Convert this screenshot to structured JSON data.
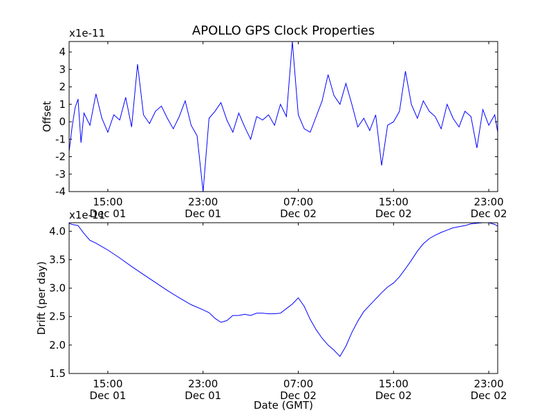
{
  "figure": {
    "title": "APOLLO GPS Clock Properties",
    "xlabel": "Date (GMT)"
  },
  "chart_data": [
    {
      "type": "line",
      "ylabel": "Offset",
      "multiplier_label": "x1e-11",
      "ylim": [
        -4,
        4.6
      ],
      "yticks": [
        {
          "value": -4,
          "label": "-4"
        },
        {
          "value": -3,
          "label": "-3"
        },
        {
          "value": -2,
          "label": "-2"
        },
        {
          "value": -1,
          "label": "-1"
        },
        {
          "value": 0,
          "label": "0"
        },
        {
          "value": 1,
          "label": "1"
        },
        {
          "value": 2,
          "label": "2"
        },
        {
          "value": 3,
          "label": "3"
        },
        {
          "value": 4,
          "label": "4"
        }
      ],
      "xlim": [
        "Dec 01 11:45",
        "Dec 02 23:45"
      ],
      "xticks": [
        {
          "value": "Dec 01 15:00",
          "time": "15:00",
          "date": "Dec 01"
        },
        {
          "value": "Dec 01 23:00",
          "time": "23:00",
          "date": "Dec 01"
        },
        {
          "value": "Dec 02 07:00",
          "time": "07:00",
          "date": "Dec 02"
        },
        {
          "value": "Dec 02 15:00",
          "time": "15:00",
          "date": "Dec 02"
        },
        {
          "value": "Dec 02 23:00",
          "time": "23:00",
          "date": "Dec 02"
        }
      ],
      "color": "#0000ff",
      "series": [
        {
          "x": [
            "Dec 01 11:45",
            "Dec 01 12:00",
            "Dec 01 12:15",
            "Dec 01 12:30",
            "Dec 01 12:45",
            "Dec 01 13:00",
            "Dec 01 13:30",
            "Dec 01 14:00",
            "Dec 01 14:30",
            "Dec 01 15:00",
            "Dec 01 15:30",
            "Dec 01 16:00",
            "Dec 01 16:30",
            "Dec 01 17:00",
            "Dec 01 17:30",
            "Dec 01 18:00",
            "Dec 01 18:30",
            "Dec 01 19:00",
            "Dec 01 19:30",
            "Dec 01 20:00",
            "Dec 01 20:30",
            "Dec 01 21:00",
            "Dec 01 21:30",
            "Dec 01 22:00",
            "Dec 01 22:30",
            "Dec 01 23:00",
            "Dec 01 23:30",
            "Dec 02 00:00",
            "Dec 02 00:30",
            "Dec 02 01:00",
            "Dec 02 01:30",
            "Dec 02 02:00",
            "Dec 02 02:30",
            "Dec 02 03:00",
            "Dec 02 03:30",
            "Dec 02 04:00",
            "Dec 02 04:30",
            "Dec 02 05:00",
            "Dec 02 05:30",
            "Dec 02 06:00",
            "Dec 02 06:30",
            "Dec 02 07:00",
            "Dec 02 07:30",
            "Dec 02 08:00",
            "Dec 02 08:30",
            "Dec 02 09:00",
            "Dec 02 09:30",
            "Dec 02 10:00",
            "Dec 02 10:30",
            "Dec 02 11:00",
            "Dec 02 11:30",
            "Dec 02 12:00",
            "Dec 02 12:30",
            "Dec 02 13:00",
            "Dec 02 13:30",
            "Dec 02 14:00",
            "Dec 02 14:30",
            "Dec 02 15:00",
            "Dec 02 15:30",
            "Dec 02 16:00",
            "Dec 02 16:30",
            "Dec 02 17:00",
            "Dec 02 17:30",
            "Dec 02 18:00",
            "Dec 02 18:30",
            "Dec 02 19:00",
            "Dec 02 19:30",
            "Dec 02 20:00",
            "Dec 02 20:30",
            "Dec 02 21:00",
            "Dec 02 21:30",
            "Dec 02 22:00",
            "Dec 02 22:30",
            "Dec 02 23:00",
            "Dec 02 23:30",
            "Dec 02 23:45"
          ],
          "y": [
            -1.7,
            -0.3,
            0.8,
            1.3,
            -1.2,
            0.5,
            -0.2,
            1.6,
            0.2,
            -0.6,
            0.4,
            0.1,
            1.4,
            -0.3,
            3.3,
            0.4,
            -0.1,
            0.6,
            0.9,
            0.2,
            -0.4,
            0.3,
            1.2,
            -0.2,
            -0.8,
            -4.0,
            0.2,
            0.6,
            1.1,
            0.1,
            -0.6,
            0.5,
            -0.3,
            -1.0,
            0.3,
            0.1,
            0.4,
            -0.2,
            1.0,
            0.3,
            4.6,
            0.4,
            -0.4,
            -0.6,
            0.3,
            1.2,
            2.7,
            1.5,
            1.0,
            2.2,
            1.0,
            -0.3,
            0.2,
            -0.5,
            0.4,
            -2.5,
            -0.2,
            0.0,
            0.6,
            2.9,
            1.0,
            0.2,
            1.2,
            0.6,
            0.3,
            -0.4,
            1.0,
            0.2,
            -0.3,
            0.6,
            0.3,
            -1.5,
            0.7,
            -0.2,
            0.4,
            -0.6
          ]
        }
      ]
    },
    {
      "type": "line",
      "ylabel": "Drift (per day)",
      "multiplier_label": "x1e-11",
      "ylim": [
        1.5,
        4.15
      ],
      "yticks": [
        {
          "value": 1.5,
          "label": "1.5"
        },
        {
          "value": 2.0,
          "label": "2.0"
        },
        {
          "value": 2.5,
          "label": "2.5"
        },
        {
          "value": 3.0,
          "label": "3.0"
        },
        {
          "value": 3.5,
          "label": "3.5"
        },
        {
          "value": 4.0,
          "label": "4.0"
        }
      ],
      "xlim": [
        "Dec 01 11:45",
        "Dec 02 23:45"
      ],
      "xticks": [
        {
          "value": "Dec 01 15:00",
          "time": "15:00",
          "date": "Dec 01"
        },
        {
          "value": "Dec 01 23:00",
          "time": "23:00",
          "date": "Dec 01"
        },
        {
          "value": "Dec 02 07:00",
          "time": "07:00",
          "date": "Dec 02"
        },
        {
          "value": "Dec 02 15:00",
          "time": "15:00",
          "date": "Dec 02"
        },
        {
          "value": "Dec 02 23:00",
          "time": "23:00",
          "date": "Dec 02"
        }
      ],
      "color": "#0000ff",
      "series": [
        {
          "x": [
            "Dec 01 11:45",
            "Dec 01 12:00",
            "Dec 01 12:15",
            "Dec 01 12:30",
            "Dec 01 13:00",
            "Dec 01 13:30",
            "Dec 01 14:00",
            "Dec 01 14:30",
            "Dec 01 15:00",
            "Dec 01 16:00",
            "Dec 01 17:00",
            "Dec 01 18:00",
            "Dec 01 19:00",
            "Dec 01 20:00",
            "Dec 01 21:00",
            "Dec 01 22:00",
            "Dec 01 23:00",
            "Dec 01 23:30",
            "Dec 02 00:00",
            "Dec 02 00:30",
            "Dec 02 01:00",
            "Dec 02 01:30",
            "Dec 02 02:00",
            "Dec 02 02:30",
            "Dec 02 03:00",
            "Dec 02 03:30",
            "Dec 02 04:00",
            "Dec 02 04:30",
            "Dec 02 05:00",
            "Dec 02 05:30",
            "Dec 02 06:00",
            "Dec 02 06:30",
            "Dec 02 07:00",
            "Dec 02 07:30",
            "Dec 02 08:00",
            "Dec 02 08:30",
            "Dec 02 09:00",
            "Dec 02 09:30",
            "Dec 02 10:00",
            "Dec 02 10:30",
            "Dec 02 11:00",
            "Dec 02 11:30",
            "Dec 02 12:00",
            "Dec 02 12:30",
            "Dec 02 13:00",
            "Dec 02 13:30",
            "Dec 02 14:00",
            "Dec 02 14:30",
            "Dec 02 15:00",
            "Dec 02 15:30",
            "Dec 02 16:00",
            "Dec 02 16:30",
            "Dec 02 17:00",
            "Dec 02 17:30",
            "Dec 02 18:00",
            "Dec 02 18:30",
            "Dec 02 19:00",
            "Dec 02 19:30",
            "Dec 02 20:00",
            "Dec 02 20:30",
            "Dec 02 21:00",
            "Dec 02 21:30",
            "Dec 02 22:00",
            "Dec 02 22:30",
            "Dec 02 23:00",
            "Dec 02 23:30",
            "Dec 02 23:45"
          ],
          "y": [
            4.14,
            4.12,
            4.11,
            4.1,
            3.96,
            3.84,
            3.79,
            3.73,
            3.67,
            3.53,
            3.38,
            3.24,
            3.1,
            2.96,
            2.83,
            2.71,
            2.62,
            2.57,
            2.47,
            2.4,
            2.43,
            2.52,
            2.52,
            2.54,
            2.52,
            2.56,
            2.56,
            2.55,
            2.55,
            2.56,
            2.64,
            2.72,
            2.83,
            2.68,
            2.45,
            2.27,
            2.12,
            2.0,
            1.91,
            1.8,
            1.98,
            2.22,
            2.42,
            2.59,
            2.7,
            2.81,
            2.92,
            3.02,
            3.09,
            3.2,
            3.34,
            3.49,
            3.65,
            3.78,
            3.87,
            3.93,
            3.98,
            4.02,
            4.06,
            4.08,
            4.1,
            4.13,
            4.14,
            4.15,
            4.15,
            4.12,
            4.09
          ]
        }
      ]
    }
  ]
}
